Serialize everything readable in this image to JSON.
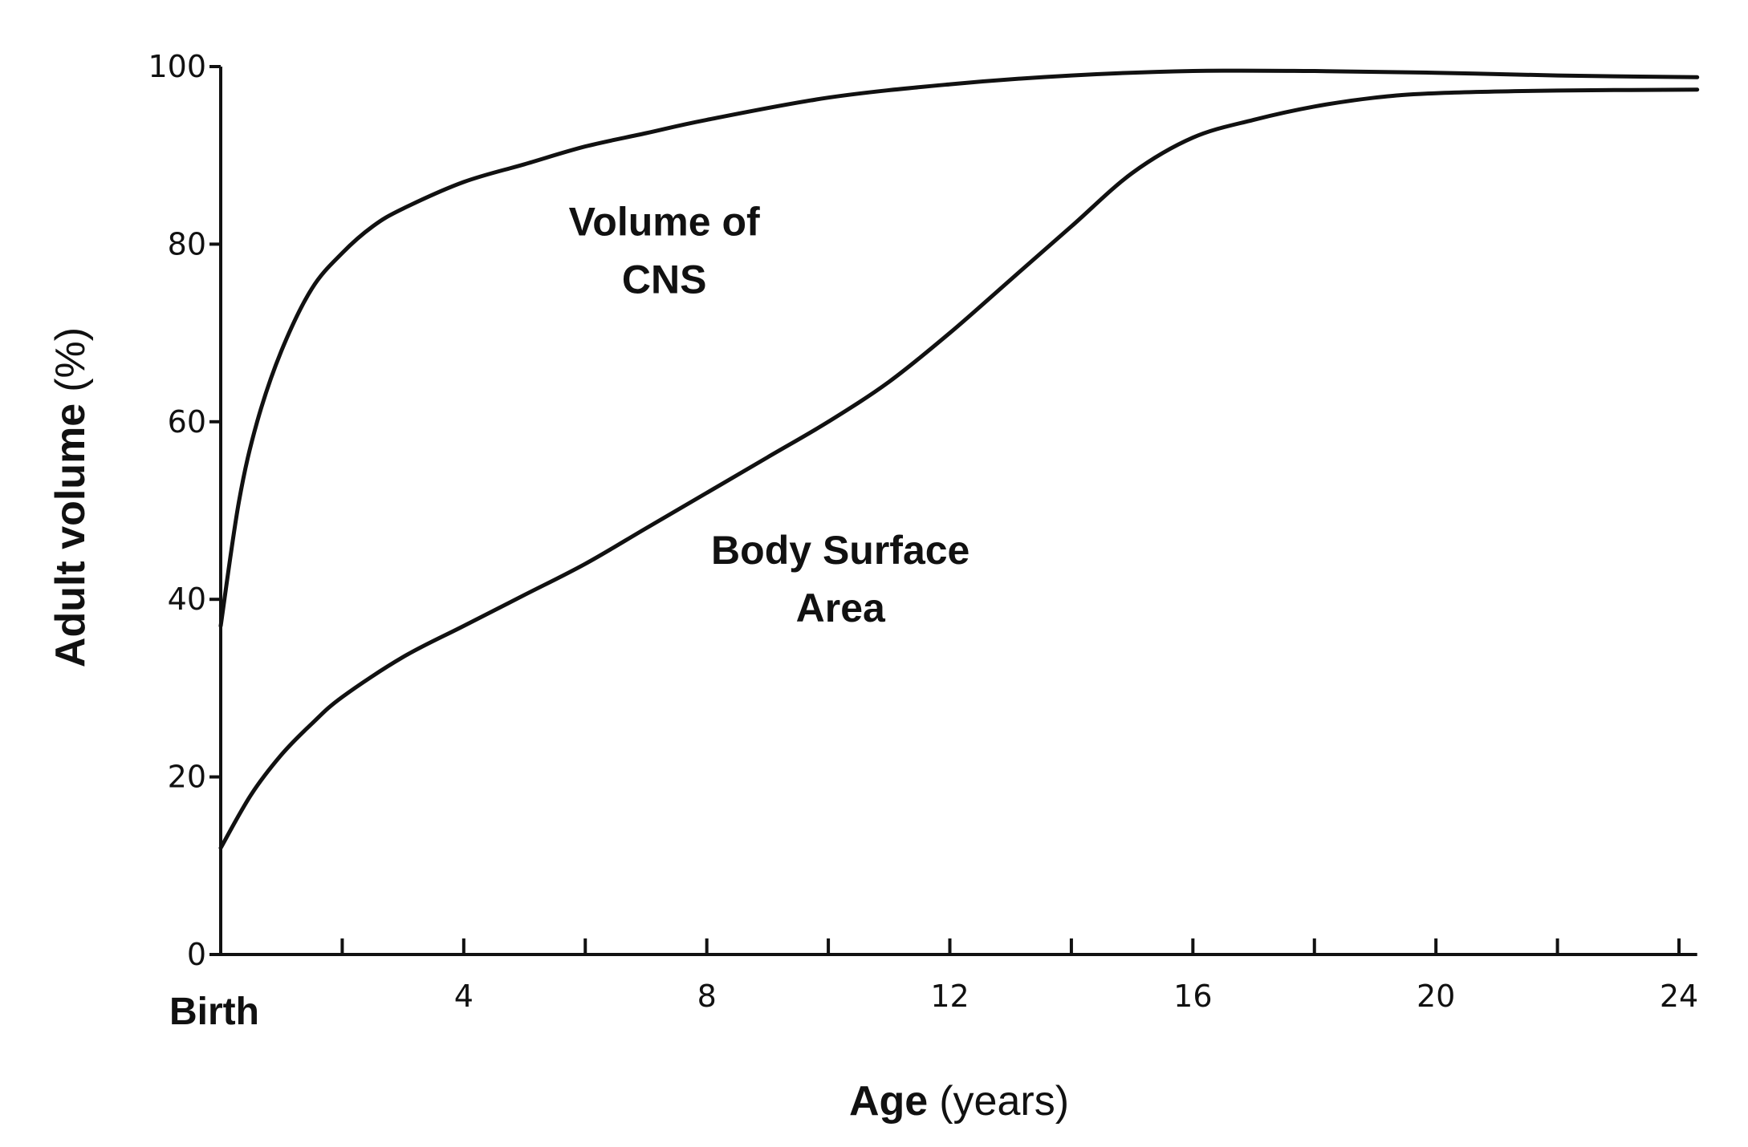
{
  "chart_data": {
    "type": "line",
    "title": "",
    "xlabel": {
      "bold": "Age",
      "normal": "(years)"
    },
    "ylabel": {
      "bold": "Adult volume",
      "normal": "(%)"
    },
    "xlim": [
      0,
      24
    ],
    "ylim": [
      0,
      100
    ],
    "x_ticks": [
      0,
      2,
      4,
      6,
      8,
      10,
      12,
      14,
      16,
      18,
      20,
      22,
      24
    ],
    "x_tick_labels": [
      {
        "x": 0,
        "label": "Birth"
      },
      {
        "x": 4,
        "label": "4"
      },
      {
        "x": 8,
        "label": "8"
      },
      {
        "x": 12,
        "label": "12"
      },
      {
        "x": 16,
        "label": "16"
      },
      {
        "x": 20,
        "label": "20"
      },
      {
        "x": 24,
        "label": "24"
      }
    ],
    "y_ticks": [
      0,
      20,
      40,
      60,
      80,
      100
    ],
    "y_tick_labels": [
      "0",
      "20",
      "40",
      "60",
      "80",
      "100"
    ],
    "grid": false,
    "series": [
      {
        "name": "Volume of CNS",
        "label_lines": [
          "Volume of",
          "CNS"
        ],
        "label_pos": {
          "x": 7.3,
          "y": 81
        },
        "x": [
          0,
          0.3,
          0.6,
          1.0,
          1.5,
          2.0,
          2.5,
          3.0,
          4.0,
          5.0,
          6.0,
          7.0,
          8.0,
          10.0,
          12.0,
          14.0,
          16.0,
          18.0,
          20.0,
          22.0,
          24.3
        ],
        "values": [
          37,
          51,
          60,
          68,
          75,
          79,
          82,
          84,
          87,
          89,
          91,
          92.5,
          94,
          96.5,
          98,
          99,
          99.5,
          99.5,
          99.3,
          99,
          98.8
        ]
      },
      {
        "name": "Body Surface Area",
        "label_lines": [
          "Body Surface",
          "Area"
        ],
        "label_pos": {
          "x": 10.2,
          "y": 44
        },
        "x": [
          0,
          0.5,
          1.0,
          1.5,
          2.0,
          3.0,
          4.0,
          5.0,
          6.0,
          7.0,
          8.0,
          9.0,
          10.0,
          11.0,
          12.0,
          13.0,
          14.0,
          15.0,
          16.0,
          17.0,
          18.0,
          19.0,
          20.0,
          22.0,
          24.3
        ],
        "values": [
          12,
          18,
          22.5,
          26,
          29,
          33.5,
          37,
          40.5,
          44,
          48,
          52,
          56,
          60,
          64.5,
          70,
          76,
          82,
          88,
          92,
          94,
          95.5,
          96.5,
          97,
          97.3,
          97.4
        ]
      }
    ]
  }
}
